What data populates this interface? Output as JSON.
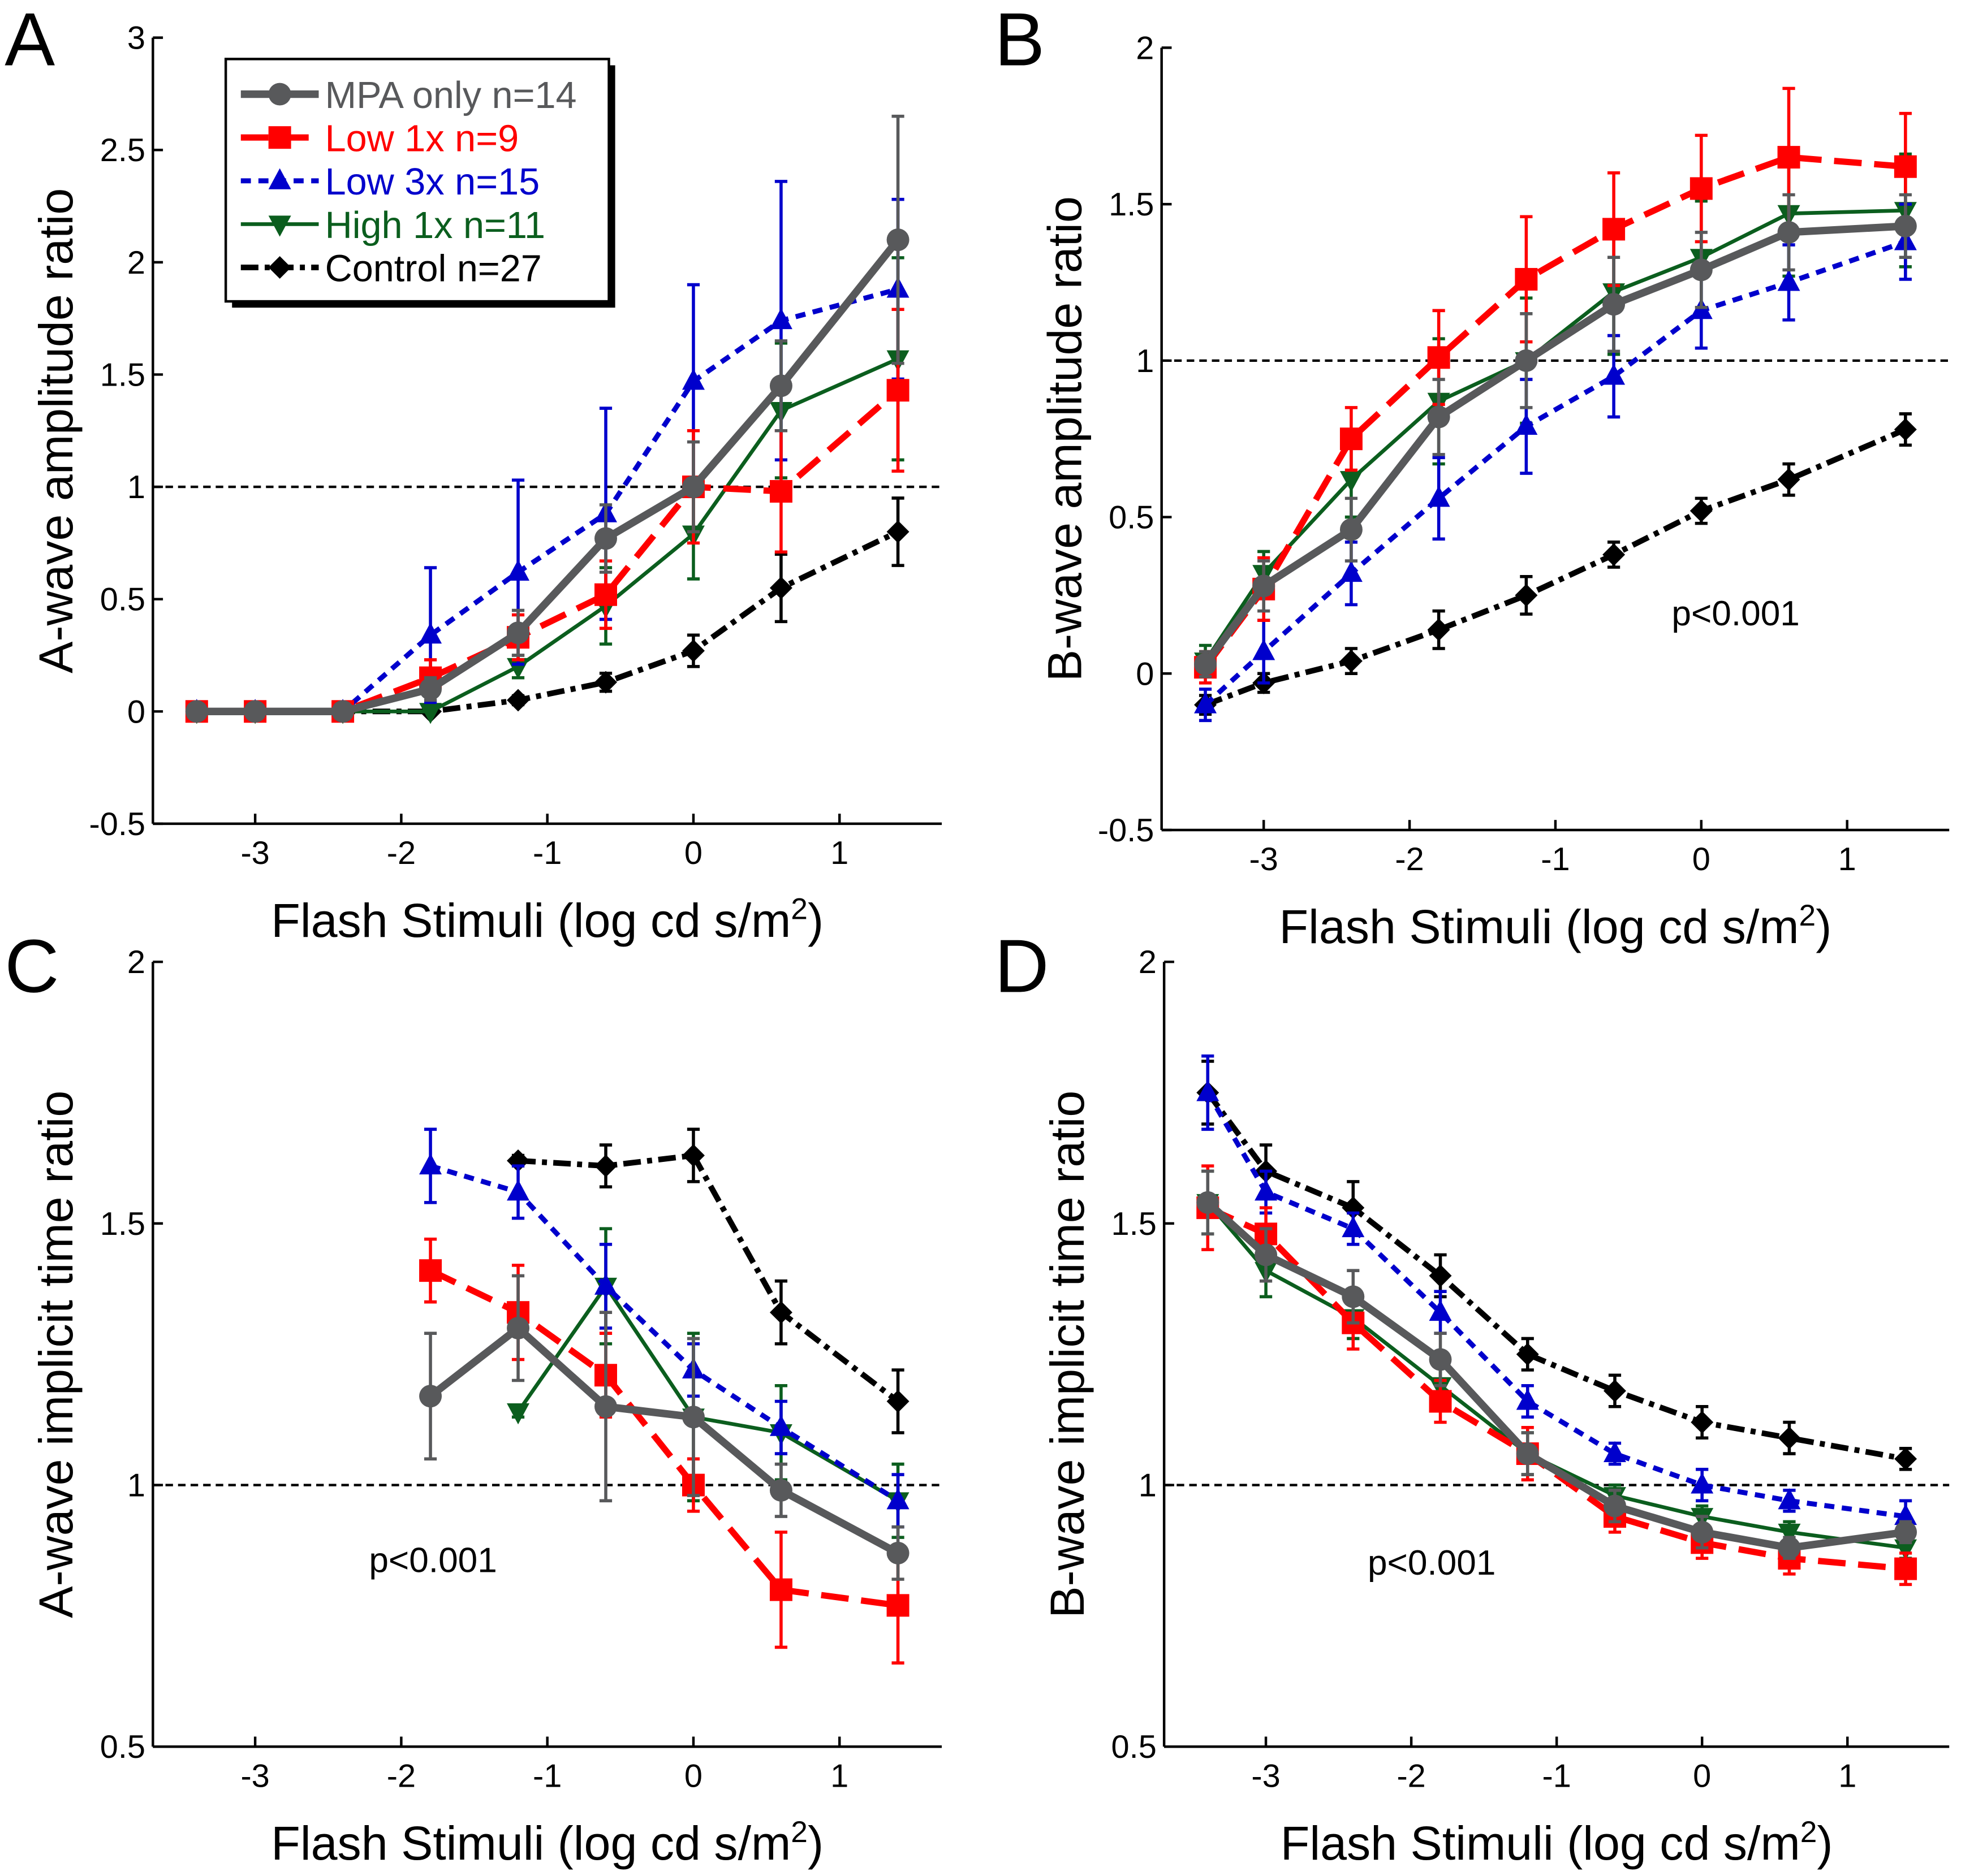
{
  "styles": {
    "MPA only n=14": {
      "color": "#58595b",
      "marker": "circle",
      "line": "solid-thick"
    },
    "Low 1x n=9": {
      "color": "#ff0000",
      "marker": "square",
      "line": "long-dash"
    },
    "Low 3x n=15": {
      "color": "#0000cc",
      "marker": "triangle-up",
      "line": "short-dash"
    },
    "High 1x n=11": {
      "color": "#0b5e1e",
      "marker": "triangle-down",
      "line": "solid"
    },
    "Control n=27": {
      "color": "#000000",
      "marker": "diamond",
      "line": "dash-dot"
    }
  },
  "legend": [
    "MPA only n=14",
    "Low 1x n=9",
    "Low 3x n=15",
    "High 1x n=11",
    "Control n=27"
  ],
  "chart_data": [
    {
      "panel": "A",
      "type": "line",
      "xlabel": "Flash Stimuli (log cd s/m",
      "xlabel_sup": "2",
      "xlabel_end": ")",
      "ylabel": "A-wave amplitude ratio",
      "xlim": [
        -3.7,
        1.7
      ],
      "ylim": [
        -0.5,
        3
      ],
      "xticks": [
        -3,
        -2,
        -1,
        0,
        1
      ],
      "yticks": [
        -0.5,
        0,
        0.5,
        1,
        1.5,
        2,
        2.5,
        3
      ],
      "reference_line": 1,
      "legend_position": "top-left",
      "annotation": "",
      "x": [
        -3.4,
        -3,
        -2.4,
        -1.8,
        -1.2,
        -0.6,
        0,
        0.6,
        1.4
      ],
      "series": [
        {
          "name": "MPA only n=14",
          "values": [
            0,
            0,
            0,
            0.1,
            0.35,
            0.77,
            1.0,
            1.45,
            2.1
          ],
          "err": [
            0,
            0,
            0,
            0.05,
            0.1,
            0.15,
            0.2,
            0.2,
            0.55
          ]
        },
        {
          "name": "Low 1x n=9",
          "values": [
            0,
            0,
            0,
            0.15,
            0.33,
            0.52,
            1.0,
            0.98,
            1.43
          ],
          "err": [
            0,
            0,
            0,
            0.08,
            0.1,
            0.15,
            0.25,
            0.27,
            0.36
          ]
        },
        {
          "name": "Low 3x n=15",
          "values": [
            0,
            0,
            0,
            0.34,
            0.62,
            0.88,
            1.47,
            1.74,
            1.88
          ],
          "err": [
            0,
            0,
            0,
            0.3,
            0.41,
            0.47,
            0.43,
            0.62,
            0.4
          ]
        },
        {
          "name": "High 1x n=11",
          "values": [
            0,
            0,
            0,
            0,
            0.2,
            0.47,
            0.79,
            1.34,
            1.57
          ],
          "err": [
            0,
            0,
            0,
            0,
            0.05,
            0.17,
            0.2,
            0.3,
            0.45
          ]
        },
        {
          "name": "Control n=27",
          "values": [
            0,
            0,
            0,
            0,
            0.05,
            0.13,
            0.27,
            0.55,
            0.8
          ],
          "err": [
            0,
            0,
            0,
            0,
            0.02,
            0.04,
            0.07,
            0.15,
            0.15
          ]
        }
      ]
    },
    {
      "panel": "B",
      "type": "line",
      "xlabel": "Flash Stimuli (log cd s/m",
      "xlabel_sup": "2",
      "xlabel_end": ")",
      "ylabel": "B-wave amplitude ratio",
      "xlim": [
        -3.7,
        1.7
      ],
      "ylim": [
        -0.5,
        2
      ],
      "xticks": [
        -3,
        -2,
        -1,
        0,
        1
      ],
      "yticks": [
        -0.5,
        0,
        0.5,
        1,
        1.5,
        2
      ],
      "reference_line": 1,
      "annotation": "p<0.001",
      "x": [
        -3.4,
        -3,
        -2.4,
        -1.8,
        -1.2,
        -0.6,
        0,
        0.6,
        1.4
      ],
      "series": [
        {
          "name": "MPA only n=14",
          "values": [
            0.03,
            0.28,
            0.46,
            0.82,
            1.0,
            1.18,
            1.29,
            1.41,
            1.43
          ],
          "err": [
            0.04,
            0.08,
            0.1,
            0.12,
            0.15,
            0.15,
            0.12,
            0.12,
            0.1
          ]
        },
        {
          "name": "Low 1x n=9",
          "values": [
            0.02,
            0.27,
            0.75,
            1.01,
            1.26,
            1.42,
            1.55,
            1.65,
            1.62
          ],
          "err": [
            0.05,
            0.1,
            0.1,
            0.15,
            0.2,
            0.18,
            0.17,
            0.22,
            0.17
          ]
        },
        {
          "name": "Low 3x n=15",
          "values": [
            -0.1,
            0.07,
            0.32,
            0.56,
            0.79,
            0.95,
            1.16,
            1.25,
            1.38
          ],
          "err": [
            0.05,
            0.1,
            0.1,
            0.13,
            0.15,
            0.13,
            0.12,
            0.12,
            0.12
          ]
        },
        {
          "name": "High 1x n=11",
          "values": [
            0.04,
            0.32,
            0.62,
            0.87,
            1.0,
            1.22,
            1.33,
            1.47,
            1.48
          ],
          "err": [
            0.05,
            0.07,
            0.12,
            0.2,
            0.2,
            0.2,
            0.18,
            0.2,
            0.18
          ]
        },
        {
          "name": "Control n=27",
          "values": [
            -0.1,
            -0.03,
            0.04,
            0.14,
            0.25,
            0.38,
            0.52,
            0.62,
            0.78
          ],
          "err": [
            0.03,
            0.03,
            0.04,
            0.06,
            0.06,
            0.04,
            0.04,
            0.05,
            0.05
          ]
        }
      ]
    },
    {
      "panel": "C",
      "type": "line",
      "xlabel": "Flash Stimuli (log cd s/m",
      "xlabel_sup": "2",
      "xlabel_end": ")",
      "ylabel": "A-wave implicit time ratio",
      "xlim": [
        -3.7,
        1.7
      ],
      "ylim": [
        0.5,
        2
      ],
      "xticks": [
        -3,
        -2,
        -1,
        0,
        1
      ],
      "yticks": [
        0.5,
        1,
        1.5,
        2
      ],
      "reference_line": 1,
      "annotation": "p<0.001",
      "x": [
        -1.8,
        -1.2,
        -0.6,
        0,
        0.6,
        1.4
      ],
      "series": [
        {
          "name": "MPA only n=14",
          "values": [
            1.17,
            1.3,
            1.15,
            1.13,
            0.99,
            0.87
          ],
          "err": [
            0.12,
            0.1,
            0.18,
            0.15,
            0.05,
            0.05
          ]
        },
        {
          "name": "Low 1x n=9",
          "values": [
            1.41,
            1.33,
            1.21,
            1.0,
            0.8,
            0.77
          ],
          "err": [
            0.06,
            0.09,
            0.08,
            0.05,
            0.11,
            0.11
          ]
        },
        {
          "name": "Low 3x n=15",
          "values": [
            1.61,
            1.56,
            1.38,
            1.22,
            1.11,
            0.97
          ],
          "err": [
            0.07,
            0.05,
            0.08,
            0.05,
            0.05,
            0.05
          ]
        },
        {
          "name": "High 1x n=11",
          "values": [
            null,
            1.14,
            1.38,
            1.13,
            1.1,
            0.97
          ],
          "err": [
            null,
            0.01,
            0.11,
            0.16,
            0.09,
            0.07
          ]
        },
        {
          "name": "Control n=27",
          "values": [
            null,
            1.62,
            1.61,
            1.63,
            1.33,
            1.16
          ],
          "err": [
            null,
            0.01,
            0.04,
            0.05,
            0.06,
            0.06
          ]
        }
      ]
    },
    {
      "panel": "D",
      "type": "line",
      "xlabel": "Flash Stimuli (log cd s/m",
      "xlabel_sup": "2",
      "xlabel_end": ")",
      "ylabel": "B-wave implicit time ratio",
      "xlim": [
        -3.7,
        1.7
      ],
      "ylim": [
        0.5,
        2
      ],
      "xticks": [
        -3,
        -2,
        -1,
        0,
        1
      ],
      "yticks": [
        0.5,
        1,
        1.5,
        2
      ],
      "reference_line": 1,
      "annotation": "p<0.001",
      "x": [
        -3.4,
        -3,
        -2.4,
        -1.8,
        -1.2,
        -0.6,
        0,
        0.6,
        1.4
      ],
      "series": [
        {
          "name": "MPA only n=14",
          "values": [
            1.54,
            1.44,
            1.36,
            1.24,
            1.06,
            0.96,
            0.91,
            0.88,
            0.91
          ],
          "err": [
            0.06,
            0.05,
            0.05,
            0.05,
            0.04,
            0.03,
            0.03,
            0.02,
            0.02
          ]
        },
        {
          "name": "Low 1x n=9",
          "values": [
            1.53,
            1.48,
            1.31,
            1.16,
            1.06,
            0.94,
            0.89,
            0.86,
            0.84
          ],
          "err": [
            0.08,
            0.05,
            0.05,
            0.04,
            0.05,
            0.03,
            0.03,
            0.03,
            0.03
          ]
        },
        {
          "name": "Low 3x n=15",
          "values": [
            1.75,
            1.56,
            1.49,
            1.33,
            1.16,
            1.06,
            1.0,
            0.97,
            0.94
          ],
          "err": [
            0.07,
            0.04,
            0.03,
            0.04,
            0.03,
            0.02,
            0.03,
            0.02,
            0.03
          ]
        },
        {
          "name": "High 1x n=11",
          "values": [
            1.54,
            1.41,
            1.32,
            1.19,
            1.06,
            0.98,
            0.94,
            0.91,
            0.88
          ],
          "err": [
            0.06,
            0.05,
            0.04,
            0.04,
            0.04,
            0.02,
            0.02,
            0.02,
            0.02
          ]
        },
        {
          "name": "Control n=27",
          "values": [
            1.75,
            1.6,
            1.53,
            1.4,
            1.25,
            1.18,
            1.12,
            1.09,
            1.05
          ],
          "err": [
            0.06,
            0.05,
            0.05,
            0.04,
            0.03,
            0.03,
            0.03,
            0.03,
            0.02
          ]
        }
      ]
    }
  ]
}
